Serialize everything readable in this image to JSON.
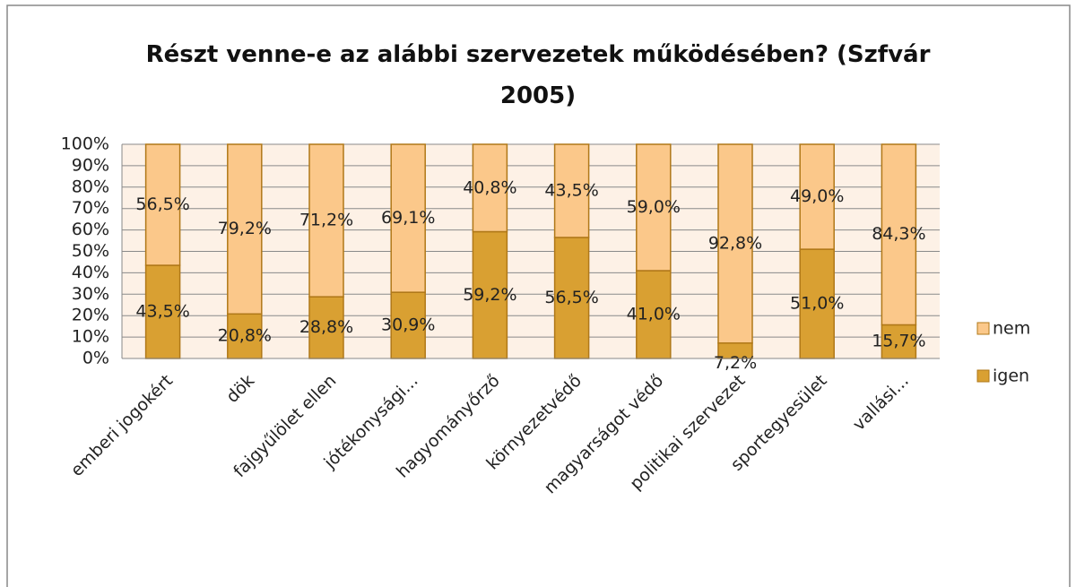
{
  "chart_data": {
    "type": "stacked_bar",
    "title": "Részt venne-e az alábbi szervezetek működésében? (Szfvár 2005)",
    "categories": [
      "emberi jogokért",
      "dök",
      "fajgyűlölet ellen",
      "jótékonysági...",
      "hagyományőrző",
      "környezetvédő",
      "magyarságot védő",
      "politikai szervezet",
      "sportegyesület",
      "vallási..."
    ],
    "series": [
      {
        "name": "igen",
        "color": "#d9a032",
        "values": [
          43.5,
          20.8,
          28.8,
          30.9,
          59.2,
          56.5,
          41.0,
          7.2,
          51.0,
          15.7
        ],
        "value_labels": [
          "43,5%",
          "20,8%",
          "28,8%",
          "30,9%",
          "59,2%",
          "56,5%",
          "41,0%",
          "7,2%",
          "51,0%",
          "15,7%"
        ]
      },
      {
        "name": "nem",
        "color": "#fbc88a",
        "values": [
          56.5,
          79.2,
          71.2,
          69.1,
          40.8,
          43.5,
          59.0,
          92.8,
          49.0,
          84.3
        ],
        "value_labels": [
          "56,5%",
          "79,2%",
          "71,2%",
          "69,1%",
          "40,8%",
          "43,5%",
          "59,0%",
          "92,8%",
          "49,0%",
          "84,3%"
        ]
      }
    ],
    "ylim": [
      0,
      100
    ],
    "yticks": [
      {
        "value": 0,
        "label": "0%"
      },
      {
        "value": 10,
        "label": "10%"
      },
      {
        "value": 20,
        "label": "20%"
      },
      {
        "value": 30,
        "label": "30%"
      },
      {
        "value": 40,
        "label": "40%"
      },
      {
        "value": 50,
        "label": "50%"
      },
      {
        "value": 60,
        "label": "60%"
      },
      {
        "value": 70,
        "label": "70%"
      },
      {
        "value": 80,
        "label": "80%"
      },
      {
        "value": 90,
        "label": "90%"
      },
      {
        "value": 100,
        "label": "100%"
      }
    ],
    "grid": true,
    "legend": "right"
  }
}
